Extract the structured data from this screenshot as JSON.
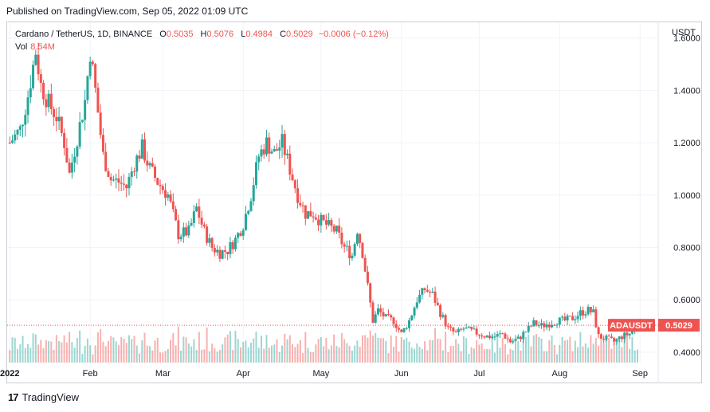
{
  "header": {
    "published": "Published on TradingView.com, Sep 05, 2022 01:09 UTC"
  },
  "legend": {
    "symbol": "Cardano / TetherUS, 1D, BINANCE",
    "o_label": "O",
    "o_value": "0.5035",
    "h_label": "H",
    "h_value": "0.5076",
    "l_label": "L",
    "l_value": "0.4984",
    "c_label": "C",
    "c_value": "0.5029",
    "change": "−0.0006 (−0.12%)",
    "vol_label": "Vol",
    "vol_value": "8.54M"
  },
  "price_axis": {
    "currency": "USDT"
  },
  "footer": {
    "brand": "TradingView",
    "brand_mark": "17"
  },
  "colors": {
    "up": "#26a69a",
    "down": "#ef5350",
    "grid": "#f0f3fa",
    "axis_text": "#131722"
  },
  "chart_data": {
    "type": "candlestick",
    "symbol": "ADAUSDT",
    "last_price": 0.5029,
    "y_ticks": [
      "1.6000",
      "1.4000",
      "1.2000",
      "1.0000",
      "0.8000",
      "0.6000",
      "0.4000"
    ],
    "ylim": [
      0.36,
      1.66
    ],
    "x_ticks": [
      "2022",
      "Feb",
      "Mar",
      "Apr",
      "May",
      "Jun",
      "Jul",
      "Aug",
      "Sep"
    ],
    "x_tick_days": [
      1,
      32,
      60,
      91,
      121,
      152,
      182,
      213,
      244
    ],
    "close_anchors": [
      [
        1,
        1.2
      ],
      [
        5,
        1.25
      ],
      [
        8,
        1.38
      ],
      [
        11,
        1.55
      ],
      [
        13,
        1.42
      ],
      [
        16,
        1.35
      ],
      [
        19,
        1.3
      ],
      [
        22,
        1.2
      ],
      [
        24,
        1.08
      ],
      [
        27,
        1.22
      ],
      [
        30,
        1.36
      ],
      [
        32,
        1.55
      ],
      [
        34,
        1.4
      ],
      [
        37,
        1.15
      ],
      [
        40,
        1.06
      ],
      [
        43,
        1.05
      ],
      [
        46,
        1.03
      ],
      [
        49,
        1.12
      ],
      [
        52,
        1.18
      ],
      [
        55,
        1.1
      ],
      [
        58,
        1.05
      ],
      [
        62,
        1.0
      ],
      [
        66,
        0.85
      ],
      [
        70,
        0.86
      ],
      [
        73,
        0.95
      ],
      [
        76,
        0.86
      ],
      [
        79,
        0.8
      ],
      [
        82,
        0.78
      ],
      [
        85,
        0.79
      ],
      [
        88,
        0.83
      ],
      [
        91,
        0.89
      ],
      [
        94,
        1.0
      ],
      [
        97,
        1.15
      ],
      [
        100,
        1.2
      ],
      [
        103,
        1.16
      ],
      [
        106,
        1.2
      ],
      [
        109,
        1.1
      ],
      [
        112,
        1.0
      ],
      [
        115,
        0.93
      ],
      [
        118,
        0.93
      ],
      [
        121,
        0.9
      ],
      [
        124,
        0.88
      ],
      [
        127,
        0.86
      ],
      [
        130,
        0.8
      ],
      [
        133,
        0.77
      ],
      [
        135,
        0.87
      ],
      [
        137,
        0.78
      ],
      [
        139,
        0.65
      ],
      [
        141,
        0.52
      ],
      [
        143,
        0.56
      ],
      [
        146,
        0.53
      ],
      [
        149,
        0.52
      ],
      [
        152,
        0.47
      ],
      [
        155,
        0.52
      ],
      [
        158,
        0.6
      ],
      [
        161,
        0.64
      ],
      [
        164,
        0.62
      ],
      [
        167,
        0.55
      ],
      [
        170,
        0.49
      ],
      [
        173,
        0.47
      ],
      [
        176,
        0.49
      ],
      [
        179,
        0.48
      ],
      [
        182,
        0.47
      ],
      [
        185,
        0.46
      ],
      [
        188,
        0.46
      ],
      [
        191,
        0.47
      ],
      [
        194,
        0.44
      ],
      [
        197,
        0.45
      ],
      [
        200,
        0.48
      ],
      [
        203,
        0.51
      ],
      [
        206,
        0.5
      ],
      [
        209,
        0.51
      ],
      [
        212,
        0.52
      ],
      [
        215,
        0.52
      ],
      [
        218,
        0.53
      ],
      [
        221,
        0.55
      ],
      [
        224,
        0.56
      ],
      [
        226,
        0.55
      ],
      [
        228,
        0.46
      ],
      [
        231,
        0.45
      ],
      [
        234,
        0.44
      ],
      [
        237,
        0.46
      ],
      [
        240,
        0.47
      ],
      [
        243,
        0.5
      ]
    ]
  }
}
